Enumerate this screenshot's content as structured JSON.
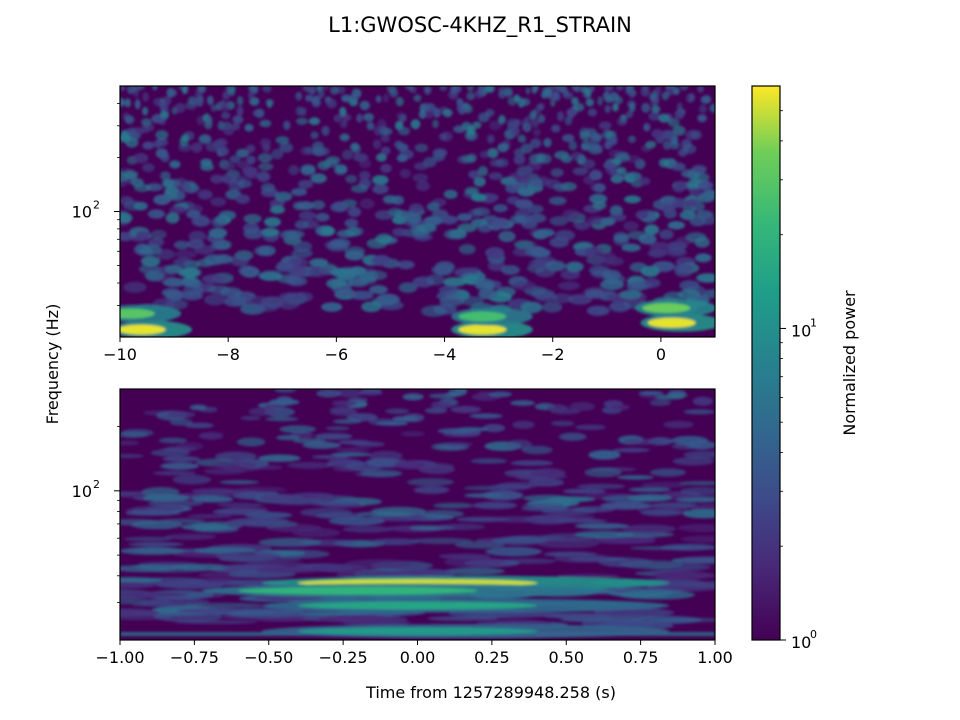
{
  "chart_data": {
    "type": "heatmap",
    "title": "L1:GWOSC-4KHZ_R1_STRAIN",
    "ylabel": "Frequency (Hz)",
    "xlabel": "Time from 1257289948.258 (s)",
    "colormap": "viridis",
    "colorbar": {
      "label": "Normalized power",
      "scale": "log",
      "range": [
        1,
        60
      ],
      "major_ticks": [
        {
          "base": "10",
          "exp": "0",
          "value": 1
        },
        {
          "base": "10",
          "exp": "1",
          "value": 10
        }
      ]
    },
    "panels": [
      {
        "name": "top",
        "xlim": [
          -10,
          1
        ],
        "y_scale": "log",
        "ylim": [
          20,
          500
        ],
        "x_ticks": [
          {
            "label": "−10",
            "value": -10
          },
          {
            "label": "−8",
            "value": -8
          },
          {
            "label": "−6",
            "value": -6
          },
          {
            "label": "−4",
            "value": -4
          },
          {
            "label": "−2",
            "value": -2
          },
          {
            "label": "0",
            "value": 0
          }
        ],
        "y_major_ticks": [
          {
            "base": "10",
            "exp": "2",
            "value": 100
          }
        ],
        "hotspots": [
          {
            "t": -9.6,
            "f": 22,
            "power": 55
          },
          {
            "t": -9.8,
            "f": 27,
            "power": 30
          },
          {
            "t": -3.3,
            "f": 22,
            "power": 55
          },
          {
            "t": -3.3,
            "f": 26,
            "power": 25
          },
          {
            "t": 0.2,
            "f": 24,
            "power": 55
          },
          {
            "t": 0.1,
            "f": 29,
            "power": 35
          }
        ]
      },
      {
        "name": "bottom",
        "xlim": [
          -1,
          1
        ],
        "y_scale": "log",
        "ylim": [
          20,
          300
        ],
        "x_ticks": [
          {
            "label": "−1.00",
            "value": -1
          },
          {
            "label": "−0.75",
            "value": -0.75
          },
          {
            "label": "−0.50",
            "value": -0.5
          },
          {
            "label": "−0.25",
            "value": -0.25
          },
          {
            "label": "0.00",
            "value": 0
          },
          {
            "label": "0.25",
            "value": 0.25
          },
          {
            "label": "0.50",
            "value": 0.5
          },
          {
            "label": "0.75",
            "value": 0.75
          },
          {
            "label": "1.00",
            "value": 1
          }
        ],
        "y_major_ticks": [
          {
            "base": "10",
            "exp": "2",
            "value": 100
          }
        ],
        "hotspots": [
          {
            "t": 0.0,
            "f": 37,
            "power": 50
          },
          {
            "t": -0.2,
            "f": 34,
            "power": 20
          },
          {
            "t": 0.0,
            "f": 29,
            "power": 15
          },
          {
            "t": 0.0,
            "f": 22,
            "power": 12
          }
        ]
      }
    ]
  }
}
